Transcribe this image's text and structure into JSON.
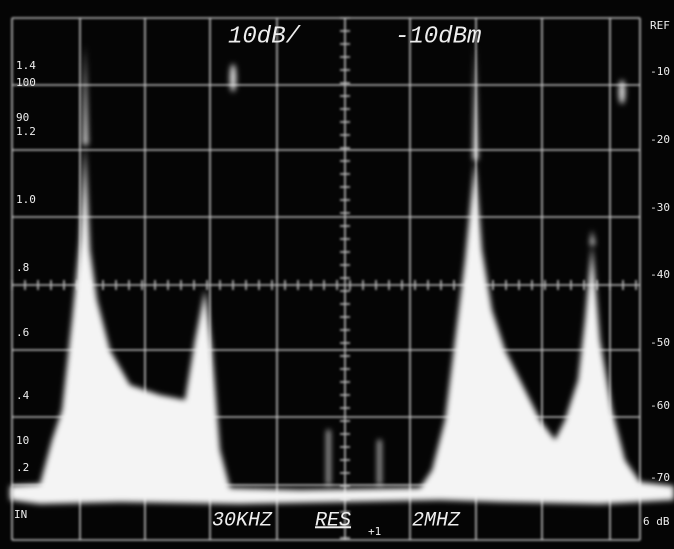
{
  "header": {
    "scale": "10dB/",
    "reference": "-10dBm",
    "ref_label": "REF"
  },
  "right_scale": [
    "-10",
    "-20",
    "-30",
    "-40",
    "-50",
    "-60",
    "-70"
  ],
  "left_scale": [
    "1.4",
    "100",
    "90",
    "1.2",
    "1.0",
    ".8",
    ".6",
    ".4",
    "10",
    ".2"
  ],
  "footer": {
    "resolution": "30KHZ",
    "res_label": "RES",
    "subscript": "+1",
    "span": "2MHZ",
    "left_marker": "IN",
    "right_marker": "6 dB"
  }
}
